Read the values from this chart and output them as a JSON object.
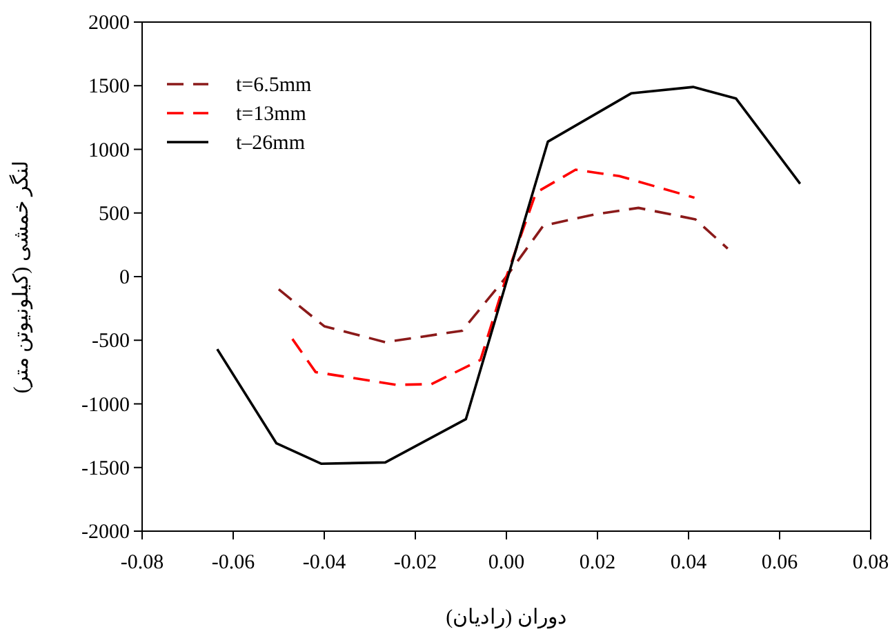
{
  "chart_data": {
    "type": "line",
    "xlabel": "دوران (رادیان)",
    "ylabel": "لنگر خمشی (کیلونیوتن متر)",
    "xlim": [
      -0.08,
      0.08
    ],
    "ylim": [
      -2000,
      2000
    ],
    "xticks": [
      {
        "value": -0.08,
        "label": "-0.08"
      },
      {
        "value": -0.06,
        "label": "-0.06"
      },
      {
        "value": -0.04,
        "label": "-0.04"
      },
      {
        "value": -0.02,
        "label": "-0.02"
      },
      {
        "value": 0,
        "label": "0.00"
      },
      {
        "value": 0.02,
        "label": "0.02"
      },
      {
        "value": 0.04,
        "label": "0.04"
      },
      {
        "value": 0.06,
        "label": "0.06"
      },
      {
        "value": 0.08,
        "label": "0.08"
      }
    ],
    "yticks": [
      -2000,
      -1500,
      -1000,
      -500,
      0,
      500,
      1000,
      1500,
      2000
    ],
    "legend": "top left",
    "series": [
      {
        "name": "t=6.5mm",
        "color": "#8b1a1a",
        "line_style": "dashed",
        "x": [
          -0.05,
          -0.04,
          -0.0266,
          -0.0097,
          0,
          0.0081,
          0.0195,
          0.029,
          0.0415,
          0.0486
        ],
        "values": [
          -100,
          -390,
          -515,
          -425,
          0,
          400,
          490,
          540,
          450,
          220
        ]
      },
      {
        "name": "t=13mm",
        "color": "#ff0000",
        "line_style": "dashed",
        "x": [
          -0.047,
          -0.0419,
          -0.0243,
          -0.0165,
          -0.0057,
          0,
          0.0065,
          0.0152,
          0.0248,
          0.0413
        ],
        "values": [
          -490,
          -750,
          -850,
          -845,
          -655,
          0,
          660,
          840,
          790,
          620
        ]
      },
      {
        "name": "t–26mm",
        "color": "#000000",
        "line_style": "solid",
        "x": [
          -0.0635,
          -0.0505,
          -0.0407,
          -0.0266,
          -0.0089,
          0.0091,
          0.0274,
          0.041,
          0.0504,
          0.0645
        ],
        "values": [
          -570,
          -1310,
          -1470,
          -1460,
          -1120,
          1060,
          1440,
          1490,
          1400,
          730
        ]
      }
    ]
  }
}
